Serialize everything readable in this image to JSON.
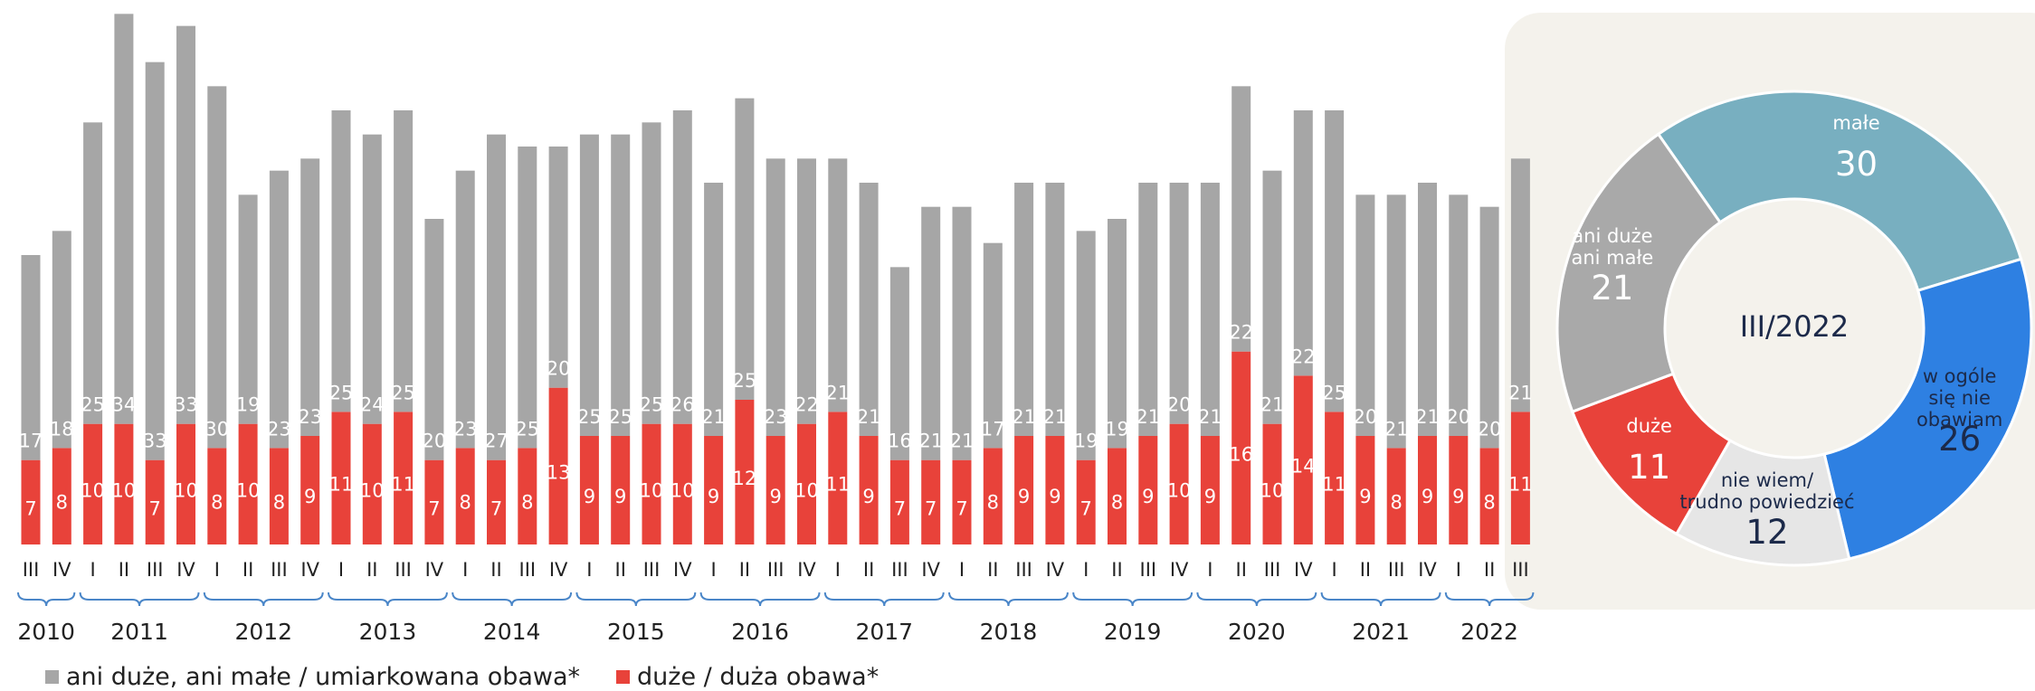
{
  "chart_data": [
    {
      "type": "stacked_bar",
      "categories": [
        "III",
        "IV",
        "I",
        "II",
        "III",
        "IV",
        "I",
        "II",
        "III",
        "IV",
        "I",
        "II",
        "III",
        "IV",
        "I",
        "II",
        "III",
        "IV",
        "I",
        "II",
        "III",
        "IV",
        "I",
        "II",
        "III",
        "IV",
        "I",
        "II",
        "III",
        "IV",
        "I",
        "II",
        "III",
        "IV",
        "I",
        "II",
        "III",
        "IV",
        "I",
        "II",
        "III",
        "IV",
        "I",
        "II",
        "III",
        "IV",
        "I",
        "II",
        "III"
      ],
      "years": [
        "2010",
        "2011",
        "2012",
        "2013",
        "2014",
        "2015",
        "2016",
        "2017",
        "2018",
        "2019",
        "2020",
        "2021",
        "2022"
      ],
      "ylim": [
        0,
        45
      ],
      "series": [
        {
          "name": "duże / duża obawa*",
          "color": "#e8423a",
          "values": [
            7,
            8,
            10,
            10,
            7,
            10,
            8,
            10,
            8,
            9,
            11,
            10,
            11,
            7,
            8,
            7,
            8,
            13,
            9,
            9,
            10,
            10,
            9,
            12,
            9,
            10,
            11,
            9,
            7,
            7,
            7,
            8,
            9,
            9,
            7,
            8,
            9,
            10,
            9,
            16,
            10,
            14,
            11,
            9,
            8,
            9,
            9,
            8,
            11
          ]
        },
        {
          "name": "ani duże, ani małe / umiarkowana obawa*",
          "color": "#a6a6a6",
          "values": [
            17,
            18,
            25,
            34,
            33,
            33,
            30,
            19,
            23,
            23,
            25,
            24,
            25,
            20,
            23,
            27,
            25,
            20,
            25,
            25,
            25,
            26,
            21,
            25,
            23,
            22,
            21,
            21,
            16,
            21,
            21,
            17,
            21,
            21,
            19,
            19,
            21,
            20,
            21,
            22,
            21,
            22,
            25,
            20,
            21,
            21,
            20,
            20,
            21
          ]
        }
      ]
    },
    {
      "type": "donut",
      "title": "III/2022",
      "start_angle": -35,
      "categories": [
        "małe",
        "w ogóle się nie\nobawiam",
        "nie wiem/\ntrudno powiedzieć",
        "duże",
        "ani duże\nani małe"
      ],
      "values": [
        30,
        26,
        12,
        11,
        21
      ],
      "colors": [
        "#78afc0",
        "#2e80e2",
        "#e6e6e6",
        "#e8423a",
        "#a9a9a9"
      ],
      "text_colors": [
        "#ffffff",
        "#1c2a4a",
        "#1c2a4a",
        "#ffffff",
        "#ffffff"
      ]
    }
  ]
}
